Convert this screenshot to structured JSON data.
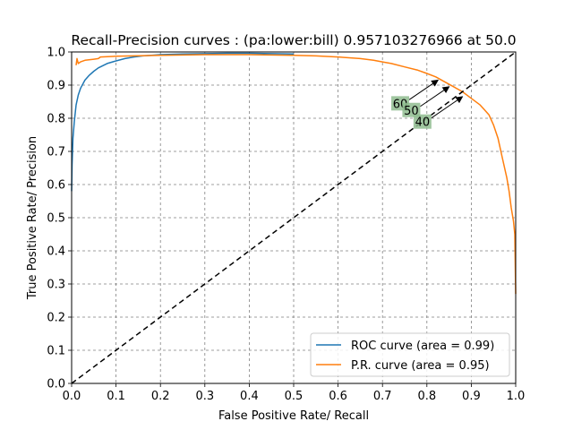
{
  "chart_data": {
    "type": "line",
    "title": "Recall-Precision curves : (pa:lower:bill) 0.957103276966 at 50.0",
    "xlabel": "False Positive Rate/ Recall",
    "ylabel": "True Positive Rate/ Precision",
    "xlim": [
      0.0,
      1.0
    ],
    "ylim": [
      0.0,
      1.0
    ],
    "xticks": [
      "0.0",
      "0.1",
      "0.2",
      "0.3",
      "0.4",
      "0.5",
      "0.6",
      "0.7",
      "0.8",
      "0.9",
      "1.0"
    ],
    "yticks": [
      "0.0",
      "0.1",
      "0.2",
      "0.3",
      "0.4",
      "0.5",
      "0.6",
      "0.7",
      "0.8",
      "0.9",
      "1.0"
    ],
    "grid": true,
    "legend_position": "lower-right",
    "series": [
      {
        "name": "ROC curve (area = 0.99)",
        "color": "#1f77b4",
        "x": [
          0.0,
          0.001,
          0.003,
          0.006,
          0.01,
          0.015,
          0.02,
          0.03,
          0.04,
          0.05,
          0.06,
          0.08,
          0.1,
          0.12,
          0.14,
          0.16,
          0.18,
          0.2,
          0.25,
          0.3,
          0.35,
          0.4,
          0.45,
          0.5
        ],
        "y": [
          0.58,
          0.66,
          0.74,
          0.79,
          0.84,
          0.87,
          0.89,
          0.915,
          0.93,
          0.942,
          0.952,
          0.965,
          0.973,
          0.98,
          0.985,
          0.988,
          0.99,
          0.992,
          0.994,
          0.995,
          0.996,
          0.996,
          0.995,
          0.994
        ]
      },
      {
        "name": "P.R. curve (area = 0.95)",
        "color": "#ff7f0e",
        "x": [
          0.01,
          0.012,
          0.015,
          0.02,
          0.03,
          0.05,
          0.06,
          0.065,
          0.1,
          0.2,
          0.3,
          0.4,
          0.5,
          0.55,
          0.6,
          0.65,
          0.68,
          0.7,
          0.72,
          0.75,
          0.78,
          0.8,
          0.82,
          0.84,
          0.86,
          0.88,
          0.9,
          0.92,
          0.93,
          0.94,
          0.95,
          0.96,
          0.97,
          0.98,
          0.985,
          0.99,
          0.995,
          0.998,
          1.0
        ],
        "y": [
          0.96,
          0.98,
          0.965,
          0.97,
          0.975,
          0.978,
          0.98,
          0.985,
          0.987,
          0.99,
          0.992,
          0.992,
          0.99,
          0.988,
          0.985,
          0.98,
          0.975,
          0.97,
          0.965,
          0.955,
          0.945,
          0.935,
          0.925,
          0.91,
          0.895,
          0.88,
          0.86,
          0.84,
          0.825,
          0.81,
          0.78,
          0.74,
          0.68,
          0.62,
          0.58,
          0.53,
          0.49,
          0.45,
          0.27
        ]
      },
      {
        "name": "diagonal",
        "color": "#000000",
        "dashed": true,
        "x": [
          0.0,
          1.0
        ],
        "y": [
          0.0,
          1.0
        ]
      }
    ],
    "annotations": [
      {
        "text": "60",
        "box_xy": [
          0.74,
          0.845
        ],
        "arrow_to": [
          0.825,
          0.915
        ]
      },
      {
        "text": "50",
        "box_xy": [
          0.765,
          0.825
        ],
        "arrow_to": [
          0.85,
          0.895
        ]
      },
      {
        "text": "40",
        "box_xy": [
          0.79,
          0.79
        ],
        "arrow_to": [
          0.88,
          0.865
        ]
      }
    ]
  }
}
